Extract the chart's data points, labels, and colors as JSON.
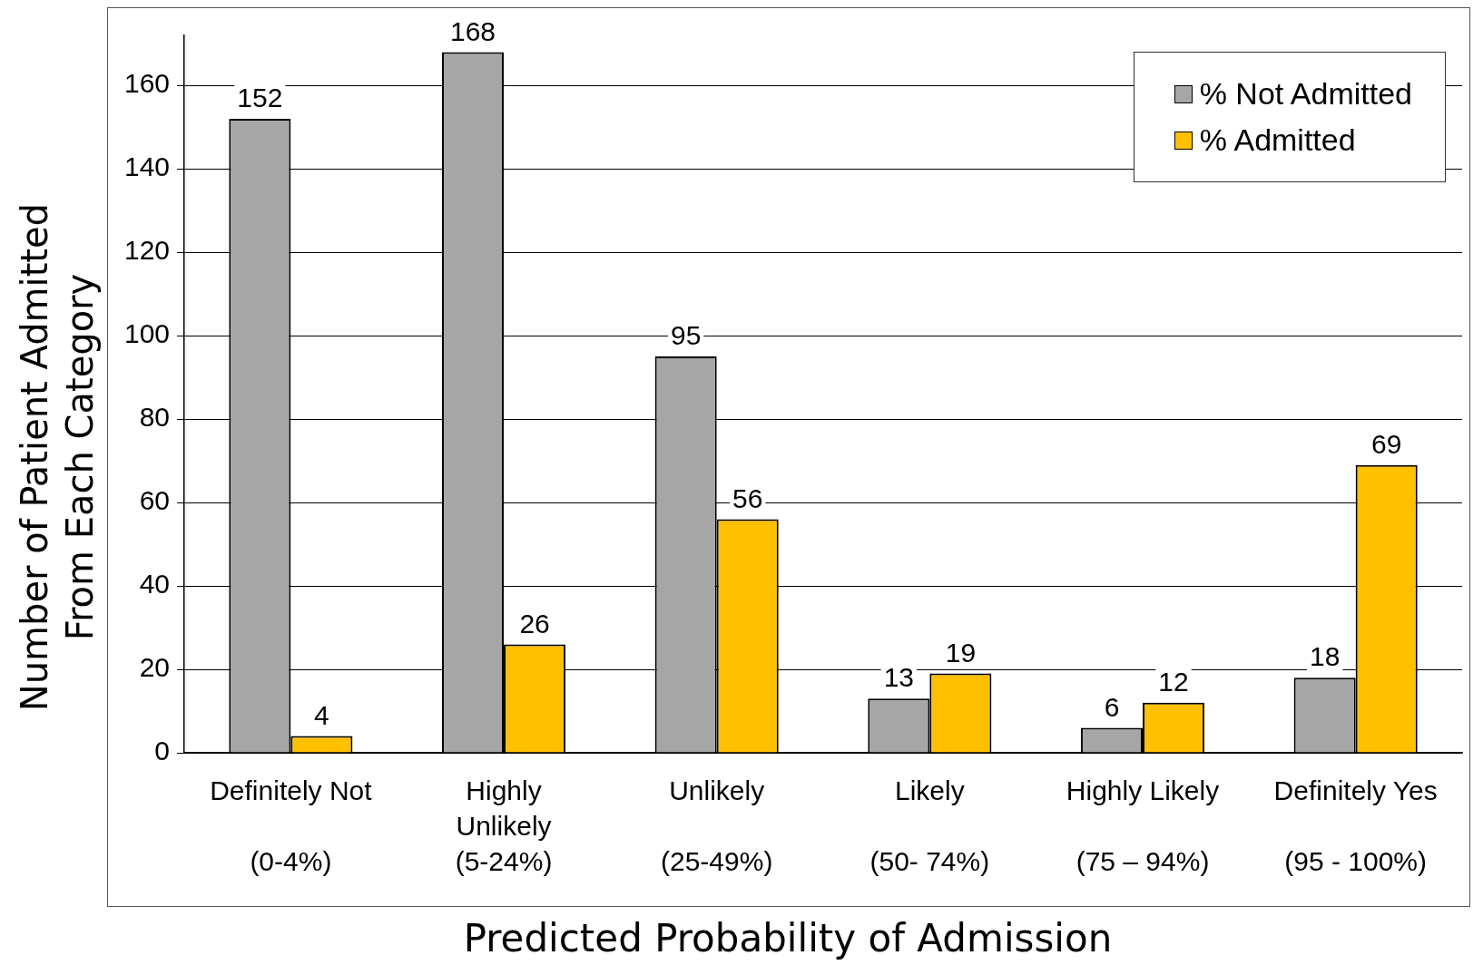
{
  "chart_data": {
    "type": "bar",
    "xlabel": "Predicted Probability of Admission",
    "ylabel": "Number of Patient Admitted\nFrom Each Category",
    "categories": [
      "Definitely Not\n(0-4%)",
      "Highly\nUnlikely\n(5-24%)",
      "Unlikely\n(25-49%)",
      "Likely\n(50- 74%)",
      "Highly Likely\n(75 – 94%)",
      "Definitely Yes\n(95 - 100%)"
    ],
    "series": [
      {
        "name": "% Not Admitted",
        "color": "#a6a6a6",
        "values": [
          152,
          168,
          95,
          13,
          6,
          18
        ]
      },
      {
        "name": "% Admitted",
        "color": "#ffc000",
        "values": [
          4,
          26,
          56,
          19,
          12,
          69
        ]
      }
    ],
    "ylim": [
      0,
      172
    ],
    "yticks": [
      0,
      20,
      40,
      60,
      80,
      100,
      120,
      140,
      160
    ],
    "grid": "y",
    "legend": "top right",
    "data_labels": true
  }
}
